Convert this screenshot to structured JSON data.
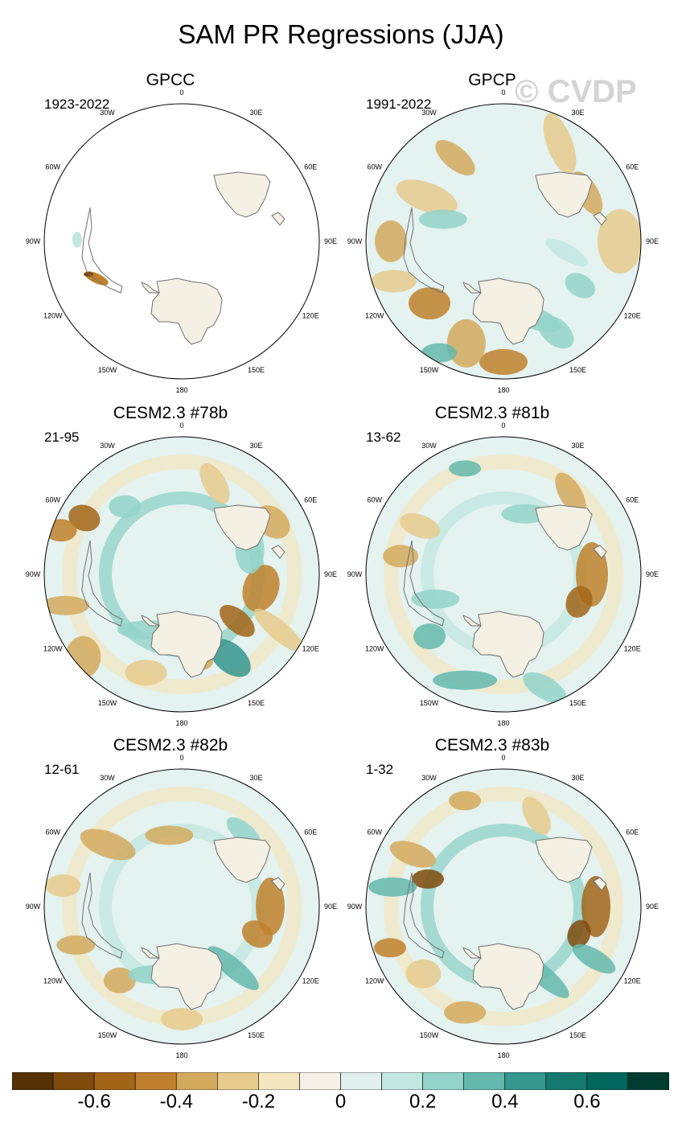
{
  "figure": {
    "title": "SAM PR Regressions (JJA)",
    "watermark": "© CVDP"
  },
  "longitude_labels": [
    "0",
    "30E",
    "60E",
    "90E",
    "120E",
    "150E",
    "180",
    "150W",
    "120W",
    "90W",
    "60W",
    "30W"
  ],
  "panels": [
    {
      "title": "GPCC",
      "period": "1923-2022",
      "coverage": "land-only"
    },
    {
      "title": "GPCP",
      "period": "1991-2022",
      "coverage": "global"
    },
    {
      "title": "CESM2.3 #78b",
      "period": "21-95",
      "coverage": "global"
    },
    {
      "title": "CESM2.3 #81b",
      "period": "13-62",
      "coverage": "global"
    },
    {
      "title": "CESM2.3 #82b",
      "period": "12-61",
      "coverage": "global"
    },
    {
      "title": "CESM2.3 #83b",
      "period": "1-32",
      "coverage": "global"
    }
  ],
  "colorbar": {
    "colors": [
      "#543005",
      "#7f4b0c",
      "#a26518",
      "#bf812d",
      "#d4aa5e",
      "#e6cb8d",
      "#f4e6bf",
      "#f5f1e6",
      "#e2f1ef",
      "#c2e7e1",
      "#93d3c9",
      "#64b8ad",
      "#35978f",
      "#14796f",
      "#01665e",
      "#003c30"
    ],
    "tick_labels": [
      "-0.6",
      "-0.4",
      "-0.2",
      "0",
      "0.2",
      "0.4",
      "0.6"
    ]
  },
  "colors": {
    "land": "#f5f0e4",
    "coastline": "#707070",
    "map_border": "#000000",
    "ocean_default": "#e4f2f0"
  }
}
